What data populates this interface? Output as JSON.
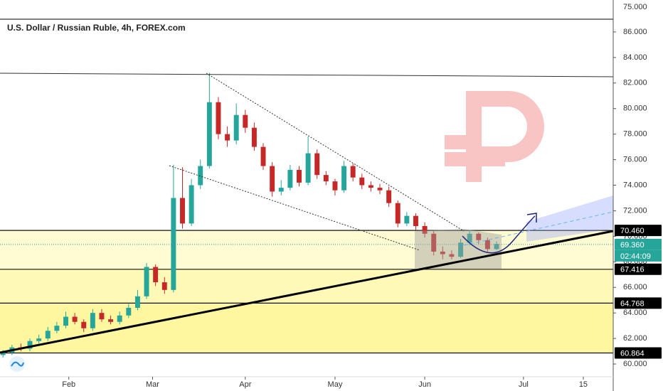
{
  "chart_data": {
    "type": "candlestick",
    "title": "U.S. Dollar / Russian Ruble, 4h, FOREX.com",
    "top_label": "75.000",
    "x": [
      1,
      4,
      7,
      10,
      13,
      16,
      19,
      22,
      25,
      28,
      31,
      34,
      37,
      40,
      43,
      46,
      49,
      52,
      55,
      58,
      61,
      64,
      67,
      70,
      73,
      76,
      79,
      82,
      85,
      88,
      91,
      94,
      97,
      100,
      103,
      106,
      109,
      112,
      115,
      118,
      121,
      124,
      127,
      130,
      133,
      136,
      139,
      142,
      145,
      148,
      151,
      154,
      157,
      160,
      163,
      166
    ],
    "open": [
      60.7,
      60.9,
      61.3,
      61.2,
      61.8,
      62.0,
      62.6,
      63.0,
      63.7,
      63.3,
      62.8,
      64.0,
      63.5,
      63.3,
      63.8,
      64.4,
      65.3,
      67.6,
      66.4,
      65.8,
      73.0,
      71.0,
      74.0,
      75.5,
      80.5,
      78.0,
      77.5,
      79.5,
      78.5,
      77.0,
      75.5,
      73.5,
      73.8,
      75.2,
      74.2,
      76.5,
      74.8,
      74.3,
      73.6,
      75.5,
      74.6,
      74.0,
      73.8,
      73.6,
      72.6,
      71.0,
      71.6,
      70.8,
      70.2,
      68.8,
      68.6,
      68.4,
      69.5,
      70.2,
      69.7,
      69.0
    ],
    "high": [
      61.1,
      61.5,
      61.6,
      62.0,
      62.3,
      62.9,
      63.3,
      64.1,
      64.0,
      63.5,
      64.3,
      64.3,
      63.8,
      64.1,
      64.7,
      65.8,
      67.9,
      67.8,
      66.8,
      75.6,
      75.4,
      74.5,
      76.0,
      82.8,
      80.9,
      78.6,
      80.4,
      79.9,
      78.9,
      77.3,
      75.8,
      74.4,
      75.6,
      75.5,
      77.8,
      76.8,
      75.1,
      74.5,
      75.9,
      75.7,
      74.9,
      74.3,
      74.1,
      73.9,
      72.8,
      71.9,
      71.8,
      71.1,
      70.4,
      69.2,
      68.9,
      69.8,
      70.5,
      70.3,
      69.9,
      69.6
    ],
    "low": [
      60.5,
      60.7,
      61.0,
      61.0,
      61.6,
      61.8,
      62.4,
      62.8,
      63.1,
      62.5,
      62.6,
      63.3,
      63.1,
      63.1,
      63.6,
      64.2,
      65.1,
      66.1,
      65.5,
      65.6,
      70.6,
      70.8,
      73.7,
      75.3,
      77.6,
      77.0,
      77.2,
      78.1,
      76.7,
      75.2,
      73.1,
      73.2,
      73.6,
      73.9,
      74.0,
      74.5,
      74.0,
      73.2,
      73.4,
      74.3,
      73.7,
      73.5,
      73.3,
      72.3,
      70.7,
      70.8,
      70.5,
      69.9,
      68.5,
      68.2,
      68.2,
      68.3,
      69.3,
      69.4,
      68.8,
      68.9
    ],
    "close": [
      60.9,
      61.3,
      61.2,
      61.8,
      62.0,
      62.6,
      63.0,
      63.7,
      63.3,
      62.8,
      64.0,
      63.5,
      63.3,
      63.8,
      64.4,
      65.3,
      67.6,
      66.4,
      65.8,
      73.0,
      71.0,
      74.0,
      75.5,
      80.5,
      78.0,
      77.5,
      79.5,
      78.5,
      77.0,
      75.5,
      73.5,
      73.8,
      75.2,
      74.2,
      76.5,
      74.8,
      74.3,
      73.6,
      75.5,
      74.6,
      74.0,
      73.8,
      73.6,
      72.6,
      71.0,
      71.6,
      70.8,
      70.2,
      68.8,
      68.6,
      68.4,
      69.5,
      70.2,
      69.7,
      69.0,
      69.4
    ],
    "up_color": "#26a69a",
    "down_color": "#c62828",
    "xlim": [
      0,
      205
    ],
    "xticks": [
      {
        "value": 23,
        "label": "Feb"
      },
      {
        "value": 51,
        "label": "Mar"
      },
      {
        "value": 82,
        "label": "Apr"
      },
      {
        "value": 112,
        "label": "May"
      },
      {
        "value": 142,
        "label": "Jun"
      },
      {
        "value": 175,
        "label": "Jul"
      },
      {
        "value": 195,
        "label": "15"
      }
    ],
    "ylim": [
      59,
      88.5
    ],
    "yticks": [
      {
        "value": 60,
        "label": "60.000"
      },
      {
        "value": 62,
        "label": "62.000"
      },
      {
        "value": 64,
        "label": "64.000"
      },
      {
        "value": 66,
        "label": "66.000"
      },
      {
        "value": 68,
        "label": "68.000"
      },
      {
        "value": 70,
        "label": "70.000"
      },
      {
        "value": 72,
        "label": "72.000"
      },
      {
        "value": 74,
        "label": "74.000"
      },
      {
        "value": 76,
        "label": "76.000"
      },
      {
        "value": 78,
        "label": "78.000"
      },
      {
        "value": 80,
        "label": "80.000"
      },
      {
        "value": 82,
        "label": "82.000"
      },
      {
        "value": 84,
        "label": "84.000"
      },
      {
        "value": 86,
        "label": "86.000"
      }
    ],
    "levels": [
      {
        "value": 70.46,
        "label": "70.460"
      },
      {
        "value": 67.416,
        "label": "67.416"
      },
      {
        "value": 64.768,
        "label": "64.768"
      },
      {
        "value": 60.864,
        "label": "60.864"
      }
    ],
    "level_fills": [
      "#fffbd2",
      "#fff9b8",
      "#fff7a0"
    ],
    "last_price": {
      "value": 69.36,
      "label": "69.360"
    },
    "countdown": "02:44:09"
  }
}
